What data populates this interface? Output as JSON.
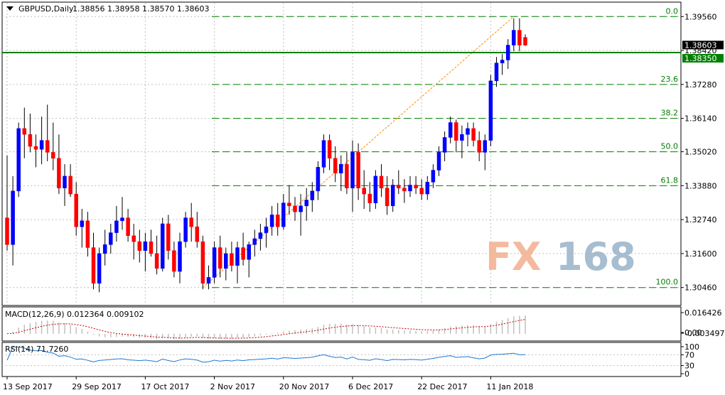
{
  "chart_data": {
    "type": "candlestick",
    "title": "GBPUSD,Daily",
    "ohlc_text": "1.38856 1.38958 1.38570 1.38603",
    "watermark": "FX168",
    "ylim": [
      1.2988,
      1.4002
    ],
    "y_ticks": [
      "1.39560",
      "1.38420",
      "1.37280",
      "1.36140",
      "1.35020",
      "1.33880",
      "1.32740",
      "1.31600",
      "1.30460"
    ],
    "x_ticks": [
      "13 Sep 2017",
      "29 Sep 2017",
      "17 Oct 2017",
      "2 Nov 2017",
      "20 Nov 2017",
      "6 Dec 2017",
      "22 Dec 2017",
      "11 Jan 2018"
    ],
    "current_price": {
      "value": 1.38603,
      "label": "1.38603"
    },
    "hline": {
      "value": 1.3835,
      "label": "1.38350",
      "color": "#008000"
    },
    "fibonacci": {
      "levels": [
        {
          "label": "0.0",
          "price": 1.3956
        },
        {
          "label": "23.6",
          "price": 1.3728
        },
        {
          "label": "38.2",
          "price": 1.3614
        },
        {
          "label": "50.0",
          "price": 1.3502
        },
        {
          "label": "61.8",
          "price": 1.3388
        },
        {
          "label": "100.0",
          "price": 1.3046
        }
      ],
      "color": "#008000"
    },
    "colors": {
      "up": "#0000ff",
      "down": "#ff0000",
      "grid": "#c0c0c0",
      "fib": "#008000",
      "trend": "#ff8c00",
      "macd_hist": "#c0c0c0",
      "macd_signal": "#c00000",
      "rsi": "#1e78d2",
      "watermark_fx": "#f3b394",
      "watermark_num": "#9eb6cc"
    },
    "candles": [
      [
        1.328,
        1.349,
        1.317,
        1.319
      ],
      [
        1.319,
        1.342,
        1.312,
        1.337
      ],
      [
        1.337,
        1.36,
        1.335,
        1.358
      ],
      [
        1.358,
        1.365,
        1.348,
        1.356
      ],
      [
        1.356,
        1.363,
        1.35,
        1.352
      ],
      [
        1.352,
        1.356,
        1.345,
        1.351
      ],
      [
        1.351,
        1.362,
        1.346,
        1.354
      ],
      [
        1.354,
        1.366,
        1.347,
        1.35
      ],
      [
        1.35,
        1.36,
        1.344,
        1.348
      ],
      [
        1.348,
        1.356,
        1.336,
        1.338
      ],
      [
        1.338,
        1.346,
        1.332,
        1.342
      ],
      [
        1.342,
        1.346,
        1.335,
        1.336
      ],
      [
        1.336,
        1.34,
        1.322,
        1.325
      ],
      [
        1.325,
        1.331,
        1.318,
        1.327
      ],
      [
        1.327,
        1.33,
        1.315,
        1.318
      ],
      [
        1.318,
        1.323,
        1.304,
        1.306
      ],
      [
        1.306,
        1.318,
        1.303,
        1.316
      ],
      [
        1.316,
        1.324,
        1.312,
        1.319
      ],
      [
        1.319,
        1.326,
        1.316,
        1.323
      ],
      [
        1.323,
        1.332,
        1.32,
        1.327
      ],
      [
        1.327,
        1.335,
        1.324,
        1.328
      ],
      [
        1.328,
        1.331,
        1.32,
        1.322
      ],
      [
        1.322,
        1.326,
        1.314,
        1.32
      ],
      [
        1.32,
        1.324,
        1.313,
        1.317
      ],
      [
        1.317,
        1.323,
        1.31,
        1.32
      ],
      [
        1.32,
        1.324,
        1.315,
        1.316
      ],
      [
        1.316,
        1.322,
        1.309,
        1.311
      ],
      [
        1.311,
        1.328,
        1.31,
        1.326
      ],
      [
        1.326,
        1.329,
        1.314,
        1.317
      ],
      [
        1.317,
        1.32,
        1.308,
        1.31
      ],
      [
        1.31,
        1.323,
        1.306,
        1.32
      ],
      [
        1.32,
        1.33,
        1.318,
        1.328
      ],
      [
        1.328,
        1.333,
        1.32,
        1.325
      ],
      [
        1.325,
        1.33,
        1.318,
        1.32
      ],
      [
        1.32,
        1.322,
        1.304,
        1.306
      ],
      [
        1.306,
        1.312,
        1.304,
        1.308
      ],
      [
        1.308,
        1.32,
        1.306,
        1.318
      ],
      [
        1.318,
        1.322,
        1.308,
        1.311
      ],
      [
        1.311,
        1.318,
        1.307,
        1.316
      ],
      [
        1.316,
        1.32,
        1.31,
        1.312
      ],
      [
        1.312,
        1.32,
        1.306,
        1.318
      ],
      [
        1.318,
        1.323,
        1.312,
        1.314
      ],
      [
        1.314,
        1.32,
        1.308,
        1.319
      ],
      [
        1.319,
        1.324,
        1.315,
        1.321
      ],
      [
        1.321,
        1.326,
        1.317,
        1.323
      ],
      [
        1.323,
        1.328,
        1.318,
        1.325
      ],
      [
        1.325,
        1.332,
        1.322,
        1.329
      ],
      [
        1.329,
        1.333,
        1.322,
        1.325
      ],
      [
        1.325,
        1.336,
        1.324,
        1.333
      ],
      [
        1.333,
        1.339,
        1.329,
        1.332
      ],
      [
        1.332,
        1.335,
        1.327,
        1.33
      ],
      [
        1.33,
        1.336,
        1.322,
        1.332
      ],
      [
        1.332,
        1.338,
        1.327,
        1.334
      ],
      [
        1.334,
        1.34,
        1.33,
        1.337
      ],
      [
        1.337,
        1.347,
        1.334,
        1.345
      ],
      [
        1.345,
        1.356,
        1.343,
        1.354
      ],
      [
        1.354,
        1.356,
        1.344,
        1.348
      ],
      [
        1.348,
        1.352,
        1.34,
        1.343
      ],
      [
        1.343,
        1.349,
        1.337,
        1.346
      ],
      [
        1.346,
        1.35,
        1.336,
        1.338
      ],
      [
        1.338,
        1.354,
        1.33,
        1.35
      ],
      [
        1.35,
        1.353,
        1.334,
        1.338
      ],
      [
        1.338,
        1.344,
        1.331,
        1.336
      ],
      [
        1.336,
        1.34,
        1.33,
        1.333
      ],
      [
        1.333,
        1.344,
        1.331,
        1.342
      ],
      [
        1.342,
        1.346,
        1.335,
        1.338
      ],
      [
        1.338,
        1.342,
        1.329,
        1.332
      ],
      [
        1.332,
        1.341,
        1.33,
        1.339
      ],
      [
        1.339,
        1.344,
        1.336,
        1.338
      ],
      [
        1.338,
        1.341,
        1.333,
        1.337
      ],
      [
        1.337,
        1.342,
        1.335,
        1.339
      ],
      [
        1.339,
        1.342,
        1.336,
        1.338
      ],
      [
        1.338,
        1.341,
        1.334,
        1.336
      ],
      [
        1.336,
        1.342,
        1.334,
        1.34
      ],
      [
        1.34,
        1.346,
        1.338,
        1.344
      ],
      [
        1.344,
        1.352,
        1.342,
        1.35
      ],
      [
        1.35,
        1.357,
        1.347,
        1.355
      ],
      [
        1.355,
        1.362,
        1.353,
        1.36
      ],
      [
        1.36,
        1.361,
        1.35,
        1.354
      ],
      [
        1.354,
        1.359,
        1.348,
        1.356
      ],
      [
        1.356,
        1.36,
        1.352,
        1.358
      ],
      [
        1.358,
        1.36,
        1.352,
        1.354
      ],
      [
        1.354,
        1.357,
        1.347,
        1.35
      ],
      [
        1.35,
        1.356,
        1.344,
        1.354
      ],
      [
        1.354,
        1.376,
        1.352,
        1.374
      ],
      [
        1.374,
        1.382,
        1.372,
        1.38
      ],
      [
        1.38,
        1.383,
        1.376,
        1.381
      ],
      [
        1.381,
        1.388,
        1.378,
        1.386
      ],
      [
        1.386,
        1.395,
        1.384,
        1.391
      ],
      [
        1.391,
        1.395,
        1.384,
        1.386
      ],
      [
        1.3886,
        1.3896,
        1.3857,
        1.386
      ]
    ],
    "macd": {
      "label": "MACD(12,26,9) 0.012364 0.009102",
      "y_ticks": [
        "0.016426",
        "0.00",
        "-0.003497"
      ],
      "ylim": [
        -0.003497,
        0.016426
      ]
    },
    "rsi": {
      "label": "RSI(14) 71.7260",
      "y_ticks": [
        "100",
        "70",
        "30",
        "0"
      ],
      "ylim": [
        0,
        100
      ]
    }
  }
}
